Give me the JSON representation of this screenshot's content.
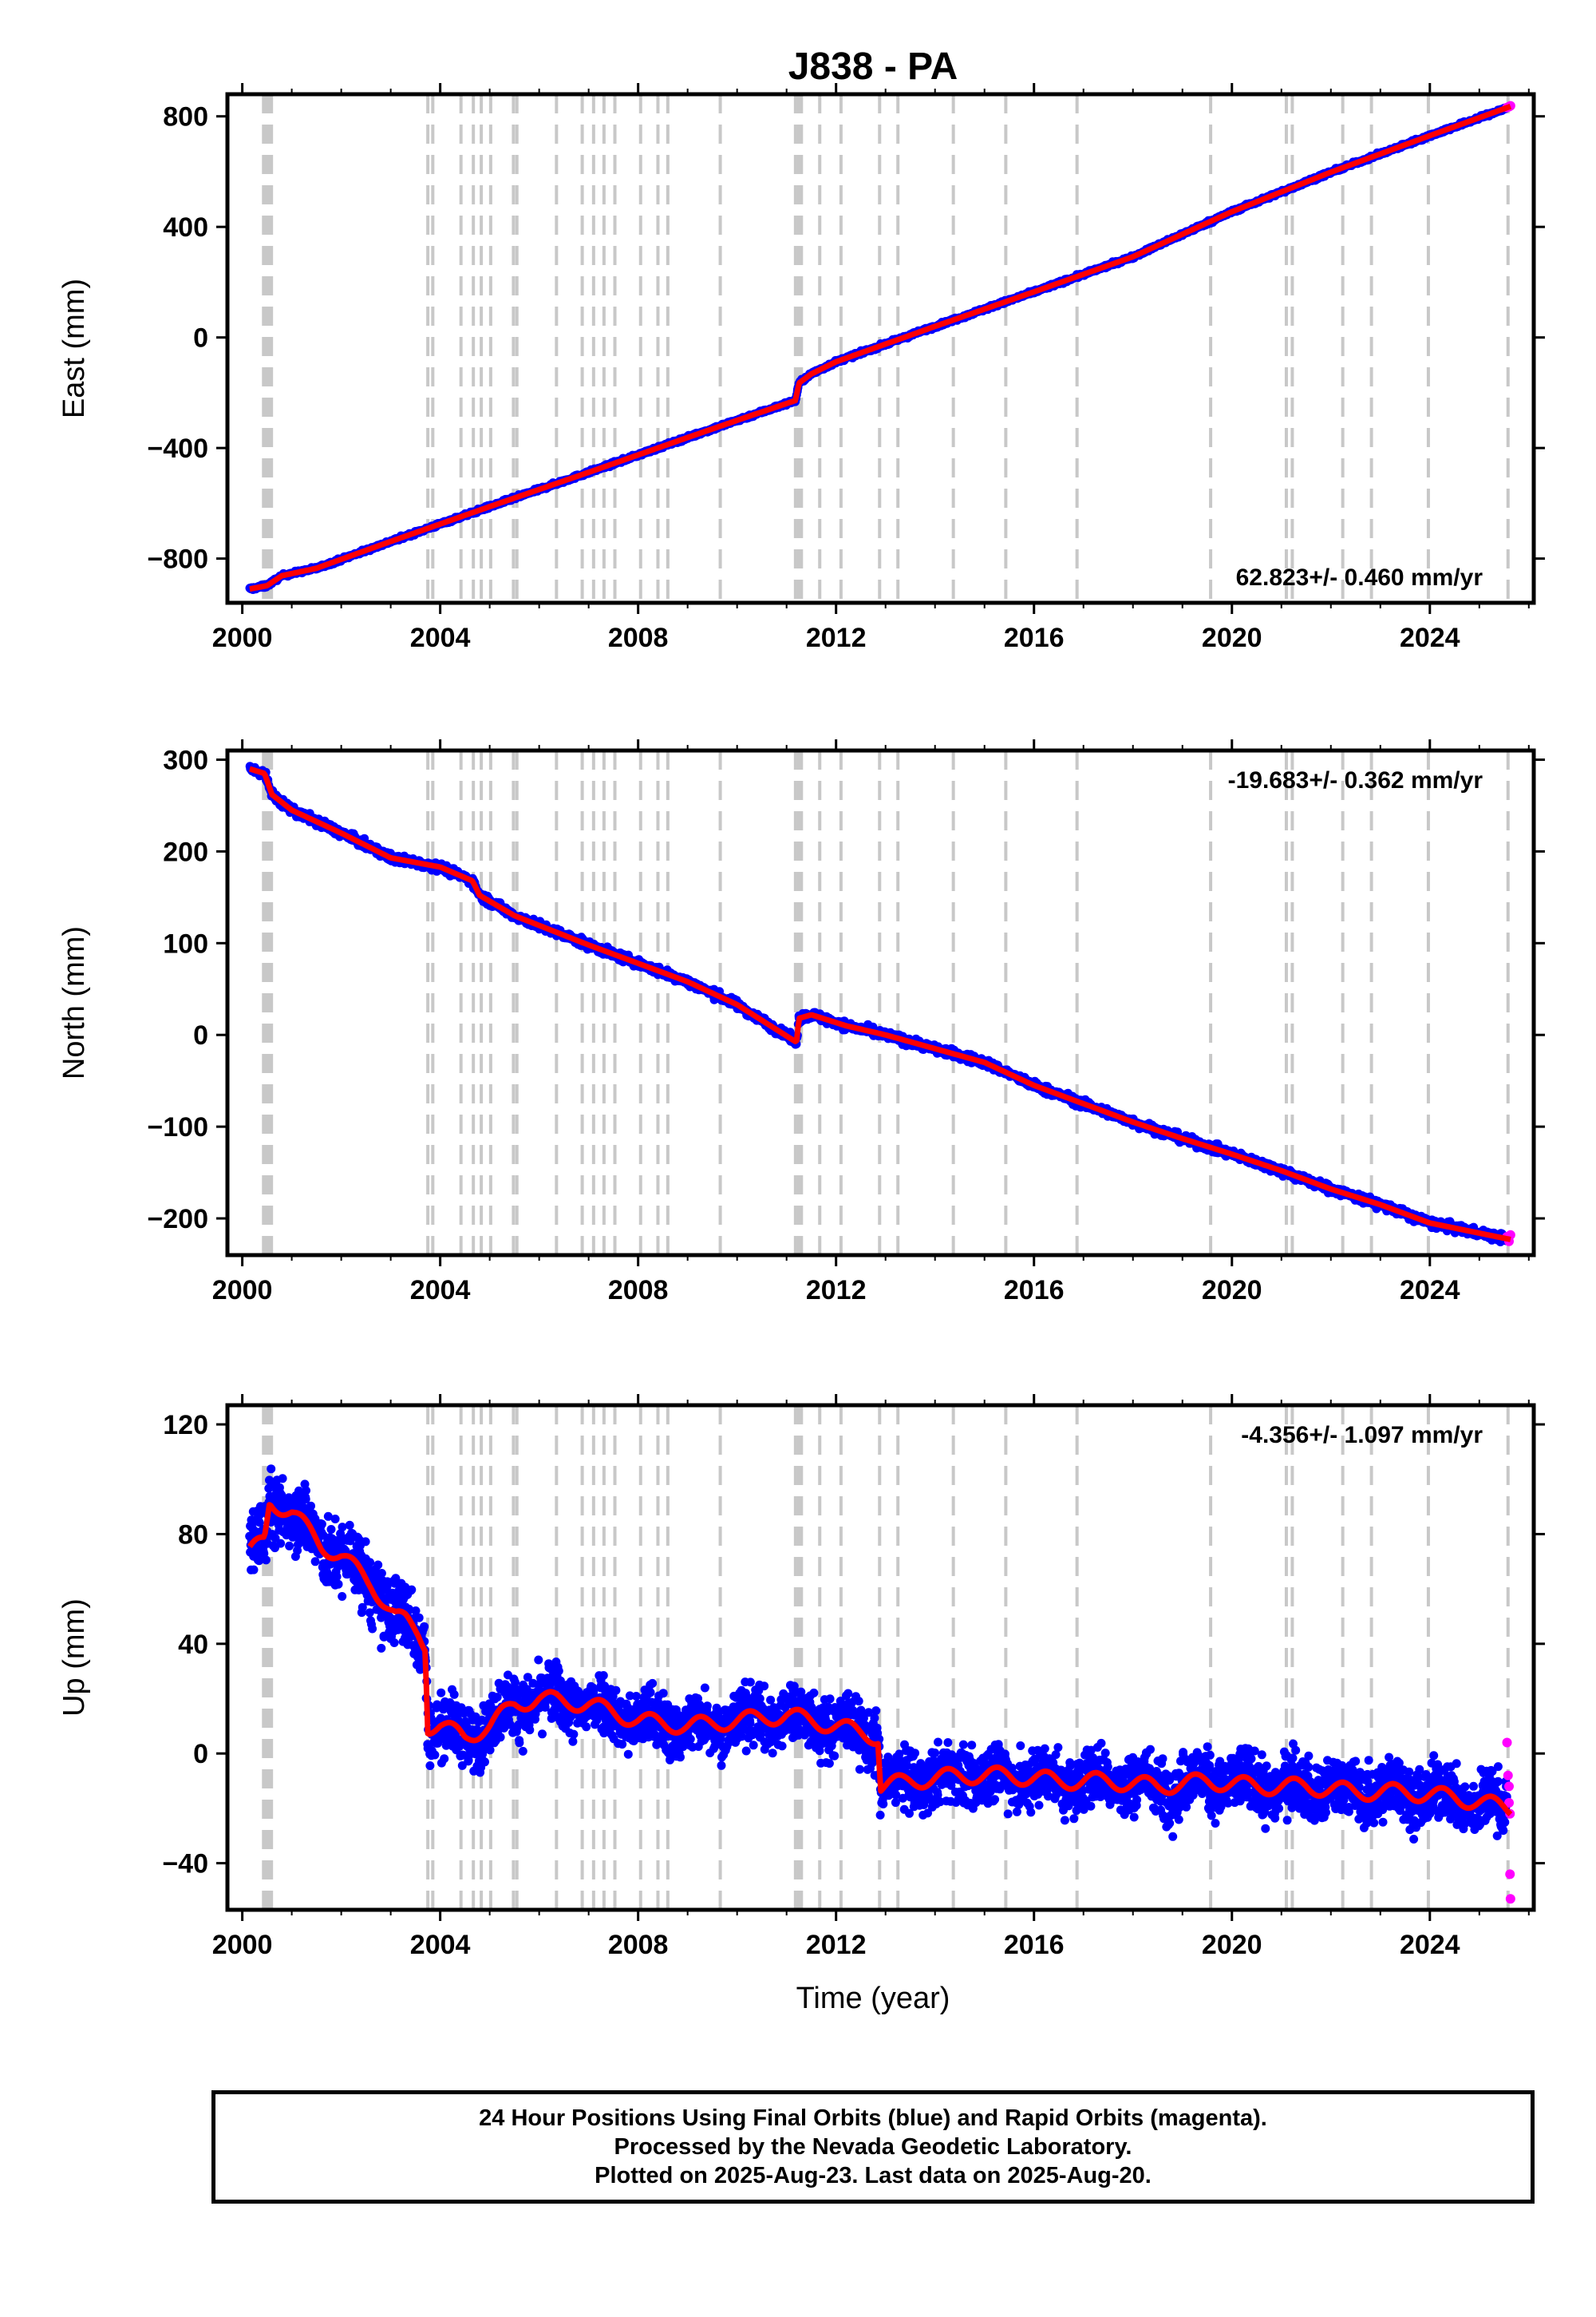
{
  "title": "J838 - PA",
  "colors": {
    "final_orbits": "#0000ff",
    "rapid_orbits": "#ff00ff",
    "model": "#ff0000",
    "event_lines": "#c8c8c8",
    "frame": "#000000"
  },
  "xlabel": "Time (year)",
  "footer": {
    "line1": "24 Hour Positions Using Final Orbits (blue) and Rapid Orbits (magenta).",
    "line2": "Processed by the Nevada Geodetic Laboratory.",
    "line3": "Plotted on 2025-Aug-23. Last data on 2025-Aug-20."
  },
  "chart_data": [
    {
      "type": "scatter",
      "ylabel": "East (mm)",
      "xlim": [
        1999.7,
        2026.1
      ],
      "ylim": [
        -960,
        880
      ],
      "xticks": [
        2000,
        2004,
        2008,
        2012,
        2016,
        2020,
        2024
      ],
      "xtick_labels": [
        "2000",
        "2004",
        "2008",
        "2012",
        "2016",
        "2020",
        "2024"
      ],
      "yticks": [
        -800,
        -400,
        0,
        400,
        800
      ],
      "ytick_labels": [
        "−800",
        "−400",
        "0",
        "400",
        "800"
      ],
      "rate_label": "62.823+/- 0.460 mm/yr",
      "rate_position": "bottom-right",
      "grid": false,
      "event_lines": [
        2000.43,
        2000.47,
        2000.51,
        2000.55,
        2000.59,
        2003.75,
        2003.85,
        2004.42,
        2004.67,
        2004.83,
        2005.02,
        2005.48,
        2005.55,
        2006.35,
        2006.87,
        2007.1,
        2007.31,
        2007.53,
        2008.05,
        2008.4,
        2008.6,
        2009.66,
        2011.18,
        2011.24,
        2011.3,
        2011.67,
        2012.1,
        2012.88,
        2013.25,
        2014.37,
        2015.43,
        2016.87,
        2019.57,
        2021.1,
        2021.22,
        2022.24,
        2022.82,
        2023.97,
        2025.58
      ],
      "series": [
        {
          "name": "final orbits",
          "x": [
            2000.15,
            2000.5,
            2000.8,
            2001.5,
            2003,
            2005,
            2007,
            2009,
            2010,
            2011.18,
            2011.25,
            2011.5,
            2012,
            2014,
            2016,
            2018,
            2020,
            2022,
            2024,
            2025.55
          ],
          "values": [
            -910,
            -898,
            -862,
            -835,
            -738,
            -612,
            -488,
            -362,
            -300,
            -228,
            -165,
            -132,
            -88,
            40,
            165,
            292,
            455,
            598,
            730,
            830
          ]
        },
        {
          "name": "rapid orbits",
          "x": [
            2025.56,
            2025.6,
            2025.63
          ],
          "values": [
            832,
            835,
            838
          ]
        },
        {
          "name": "model",
          "x": [
            2000.15,
            2000.5,
            2000.8,
            2001.5,
            2003,
            2005,
            2007,
            2009,
            2010,
            2011.18,
            2011.25,
            2011.5,
            2012,
            2014,
            2016,
            2018,
            2020,
            2022,
            2024,
            2025.63
          ],
          "values": [
            -910,
            -898,
            -862,
            -835,
            -738,
            -612,
            -488,
            -362,
            -300,
            -228,
            -165,
            -132,
            -88,
            40,
            165,
            292,
            455,
            598,
            730,
            836
          ]
        }
      ]
    },
    {
      "type": "scatter",
      "ylabel": "North (mm)",
      "xlim": [
        1999.7,
        2026.1
      ],
      "ylim": [
        -240,
        310
      ],
      "xticks": [
        2000,
        2004,
        2008,
        2012,
        2016,
        2020,
        2024
      ],
      "xtick_labels": [
        "2000",
        "2004",
        "2008",
        "2012",
        "2016",
        "2020",
        "2024"
      ],
      "yticks": [
        -200,
        -100,
        0,
        100,
        200,
        300
      ],
      "ytick_labels": [
        "−200",
        "−100",
        "0",
        "100",
        "200",
        "300"
      ],
      "rate_label": "-19.683+/- 0.362 mm/yr",
      "rate_position": "top-right",
      "grid": false,
      "event_lines": [
        2000.43,
        2000.47,
        2000.51,
        2000.55,
        2000.59,
        2003.75,
        2003.85,
        2004.42,
        2004.67,
        2004.83,
        2005.02,
        2005.48,
        2005.55,
        2006.35,
        2006.87,
        2007.1,
        2007.31,
        2007.53,
        2008.05,
        2008.4,
        2008.6,
        2009.66,
        2011.18,
        2011.24,
        2011.3,
        2011.67,
        2012.1,
        2012.88,
        2013.25,
        2014.37,
        2015.43,
        2016.87,
        2019.57,
        2021.1,
        2021.22,
        2022.24,
        2022.82,
        2023.97,
        2025.58
      ],
      "series": [
        {
          "name": "final orbits",
          "x": [
            2000.15,
            2000.45,
            2000.6,
            2001,
            2002,
            2003,
            2004,
            2004.65,
            2004.8,
            2005.5,
            2007,
            2008,
            2009,
            2010,
            2011.2,
            2011.25,
            2011.5,
            2012.2,
            2013,
            2014,
            2015,
            2016,
            2017,
            2018,
            2019,
            2020,
            2021,
            2022,
            2023,
            2024,
            2025.55
          ],
          "values": [
            290,
            285,
            262,
            245,
            220,
            193,
            183,
            168,
            152,
            130,
            98,
            78,
            58,
            33,
            -8,
            18,
            22,
            10,
            0,
            -15,
            -30,
            -55,
            -75,
            -95,
            -113,
            -130,
            -148,
            -168,
            -185,
            -205,
            -222
          ]
        },
        {
          "name": "rapid orbits",
          "x": [
            2025.56,
            2025.6,
            2025.63
          ],
          "values": [
            -220,
            -225,
            -218
          ]
        },
        {
          "name": "model",
          "x": [
            2000.15,
            2000.45,
            2000.6,
            2001,
            2002,
            2003,
            2004,
            2004.65,
            2004.8,
            2005.5,
            2007,
            2008,
            2009,
            2010,
            2011.2,
            2011.25,
            2011.5,
            2012.2,
            2013,
            2014,
            2015,
            2016,
            2017,
            2018,
            2019,
            2020,
            2021,
            2022,
            2023,
            2024,
            2025.63
          ],
          "values": [
            290,
            285,
            262,
            245,
            220,
            193,
            183,
            168,
            152,
            130,
            98,
            78,
            58,
            33,
            -8,
            18,
            22,
            10,
            0,
            -15,
            -30,
            -55,
            -75,
            -95,
            -113,
            -130,
            -148,
            -168,
            -185,
            -205,
            -223
          ]
        }
      ]
    },
    {
      "type": "scatter",
      "ylabel": "Up (mm)",
      "xlim": [
        1999.7,
        2026.1
      ],
      "ylim": [
        -57,
        127
      ],
      "xticks": [
        2000,
        2004,
        2008,
        2012,
        2016,
        2020,
        2024
      ],
      "xtick_labels": [
        "2000",
        "2004",
        "2008",
        "2012",
        "2016",
        "2020",
        "2024"
      ],
      "yticks": [
        -40,
        0,
        40,
        80,
        120
      ],
      "ytick_labels": [
        "−40",
        "0",
        "40",
        "80",
        "120"
      ],
      "rate_label": "-4.356+/- 1.097 mm/yr",
      "rate_position": "top-right",
      "grid": false,
      "event_lines": [
        2000.43,
        2000.47,
        2000.51,
        2000.55,
        2000.59,
        2003.75,
        2003.85,
        2004.42,
        2004.67,
        2004.83,
        2005.02,
        2005.48,
        2005.55,
        2006.35,
        2006.87,
        2007.1,
        2007.31,
        2007.53,
        2008.05,
        2008.4,
        2008.6,
        2009.66,
        2011.18,
        2011.24,
        2011.3,
        2011.67,
        2012.1,
        2012.88,
        2013.25,
        2014.37,
        2015.43,
        2016.87,
        2019.57,
        2021.1,
        2021.22,
        2022.24,
        2022.82,
        2023.97,
        2025.58
      ],
      "series": [
        {
          "name": "final orbits",
          "x": [
            2000.15,
            2000.45,
            2000.55,
            2001,
            2001.6,
            2002,
            2002.6,
            2003.1,
            2003.3,
            2003.55,
            2003.7,
            2003.75,
            2004,
            2004.5,
            2005,
            2005.5,
            2006,
            2007,
            2008,
            2009,
            2010,
            2011,
            2012,
            2012.85,
            2012.9,
            2013.5,
            2014.5,
            2015.5,
            2016.5,
            2017.5,
            2018.5,
            2019.5,
            2020.5,
            2021.5,
            2022.5,
            2023.5,
            2024.5,
            2025.55
          ],
          "values": [
            73,
            78,
            92,
            88,
            76,
            72,
            62,
            50,
            48,
            44,
            40,
            10,
            10,
            6,
            10,
            18,
            20,
            18,
            12,
            10,
            12,
            14,
            10,
            6,
            -12,
            -10,
            -8,
            -8,
            -10,
            -10,
            -12,
            -10,
            -12,
            -12,
            -14,
            -14,
            -16,
            -20
          ]
        },
        {
          "name": "rapid orbits",
          "x": [
            2025.56,
            2025.58,
            2025.6,
            2025.6,
            2025.62,
            2025.62,
            2025.63
          ],
          "values": [
            4,
            -8,
            -12,
            -18,
            -22,
            -44,
            -53
          ]
        },
        {
          "name": "model",
          "x": [
            2000.15,
            2000.45,
            2000.55,
            2001,
            2001.6,
            2002,
            2002.6,
            2003.1,
            2003.3,
            2003.55,
            2003.7,
            2003.75,
            2004,
            2004.5,
            2005,
            2005.5,
            2006,
            2007,
            2008,
            2009,
            2010,
            2011,
            2012,
            2012.85,
            2012.9,
            2013.5,
            2014.5,
            2015.5,
            2016.5,
            2017.5,
            2018.5,
            2019.5,
            2020.5,
            2021.5,
            2022.5,
            2023.5,
            2024.5,
            2025.63
          ],
          "values": [
            73,
            78,
            92,
            88,
            76,
            72,
            62,
            50,
            48,
            44,
            40,
            10,
            10,
            6,
            10,
            18,
            20,
            18,
            12,
            10,
            12,
            14,
            10,
            6,
            -12,
            -10,
            -8,
            -8,
            -10,
            -10,
            -12,
            -10,
            -12,
            -12,
            -14,
            -14,
            -16,
            -20
          ]
        }
      ]
    }
  ]
}
